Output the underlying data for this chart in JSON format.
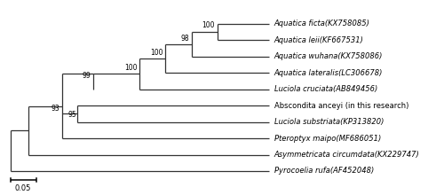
{
  "taxa": [
    "Aquatica ficta(KX758085)",
    "Aquatica leii(KF667531)",
    "Aquatica wuhana(KX758086)",
    "Aquatica lateralis(LC306678)",
    "Luciola cruciata(AB849456)",
    "Abscondita anceyi (in this research)",
    "Luciola substriata(KP313820)",
    "Pteroptyx maipo(MF686051)",
    "Asymmetricata circumdata(KX229747)",
    "Pyrocoelia rufa(AF452048)"
  ],
  "y_positions": [
    10,
    9,
    8,
    7,
    6,
    5,
    4,
    3,
    2,
    1
  ],
  "italic_flags": [
    true,
    true,
    true,
    true,
    true,
    false,
    true,
    true,
    true,
    true
  ],
  "line_color": "#333333",
  "font_size": 6.0,
  "bootstrap_font_size": 5.5,
  "figsize": [
    5.0,
    2.2
  ],
  "dpi": 100,
  "xlim": [
    -0.03,
    1.55
  ],
  "ylim": [
    0.2,
    11.3
  ]
}
